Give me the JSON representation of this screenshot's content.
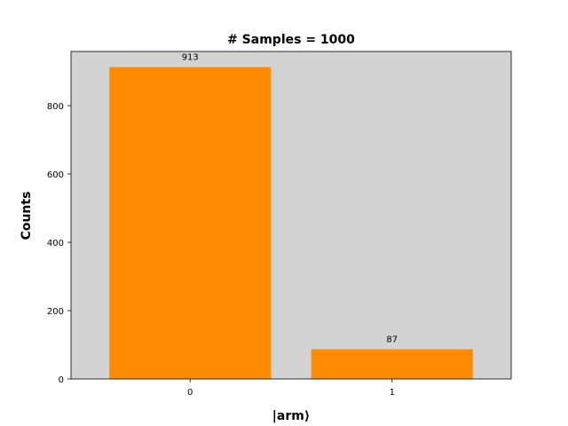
{
  "chart_data": {
    "type": "bar",
    "title": "# Samples = 1000",
    "xlabel": "|arm⟩",
    "ylabel": "Counts",
    "categories": [
      "0",
      "1"
    ],
    "values": [
      913,
      87
    ],
    "data_labels": [
      "913",
      "87"
    ],
    "ylim": [
      0,
      958.65
    ],
    "yticks": [
      0,
      200,
      400,
      600,
      800
    ],
    "grid": false,
    "legend": "none",
    "colors": {
      "bar": "#ff8c00",
      "plot_background": "#d3d3d3",
      "figure_background": "#ffffff"
    }
  }
}
